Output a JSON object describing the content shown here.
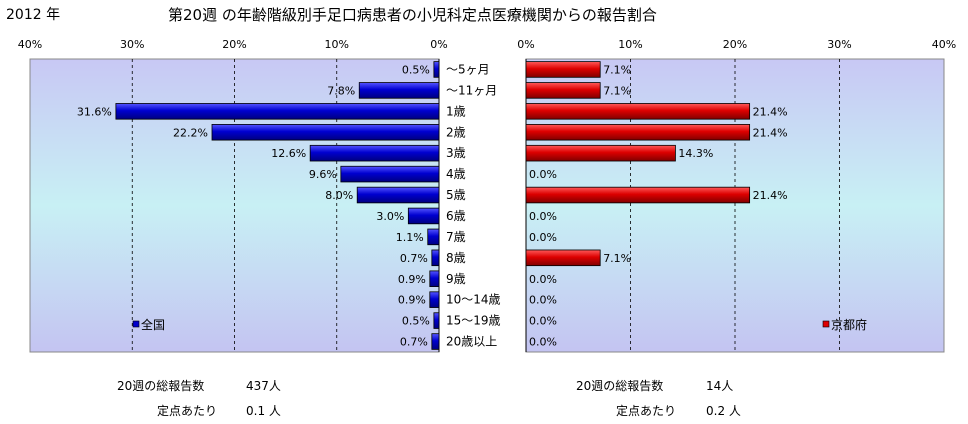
{
  "header": {
    "year": "2012 年",
    "title": "第20週 の年齢階級別手足口病患者の小児科定点医療機関からの報告割合"
  },
  "chart_data": {
    "type": "bar",
    "orientation": "horizontal",
    "xlim": [
      0,
      40
    ],
    "tick_values": [
      0,
      10,
      20,
      30,
      40
    ],
    "tick_labels": [
      "0%",
      "10%",
      "20%",
      "30%",
      "40%"
    ],
    "grid": true,
    "categories": [
      "～5ヶ月",
      "～11ヶ月",
      "1歳",
      "2歳",
      "3歳",
      "4歳",
      "5歳",
      "6歳",
      "7歳",
      "8歳",
      "9歳",
      "10～14歳",
      "15～19歳",
      "20歳以上"
    ],
    "series": [
      {
        "name": "全国",
        "color": "#0000cc",
        "values": [
          0.5,
          7.8,
          31.6,
          22.2,
          12.6,
          9.6,
          8.0,
          3.0,
          1.1,
          0.7,
          0.9,
          0.9,
          0.5,
          0.7
        ],
        "labels": [
          "0.5%",
          "7.8%",
          "31.6%",
          "22.2%",
          "12.6%",
          "9.6%",
          "8.0%",
          "3.0%",
          "1.1%",
          "0.7%",
          "0.9%",
          "0.9%",
          "0.5%",
          "0.7%"
        ],
        "legend": "top-left-panel"
      },
      {
        "name": "京都府",
        "color": "#dd0000",
        "values": [
          7.1,
          7.1,
          21.4,
          21.4,
          14.3,
          0.0,
          21.4,
          0.0,
          0.0,
          7.1,
          0.0,
          0.0,
          0.0,
          0.0
        ],
        "labels": [
          "7.1%",
          "7.1%",
          "21.4%",
          "21.4%",
          "14.3%",
          "0.0%",
          "21.4%",
          "0.0%",
          "0.0%",
          "7.1%",
          "0.0%",
          "0.0%",
          "0.0%",
          "0.0%"
        ],
        "legend": "right-panel"
      }
    ]
  },
  "stats": {
    "national": {
      "total_label": "20週の総報告数",
      "total_value": "437人",
      "per_label": "定点あたり",
      "per_value": "0.1 人"
    },
    "kyoto": {
      "total_label": "20週の総報告数",
      "total_value": "14人",
      "per_label": "定点あたり",
      "per_value": "0.2 人"
    }
  }
}
